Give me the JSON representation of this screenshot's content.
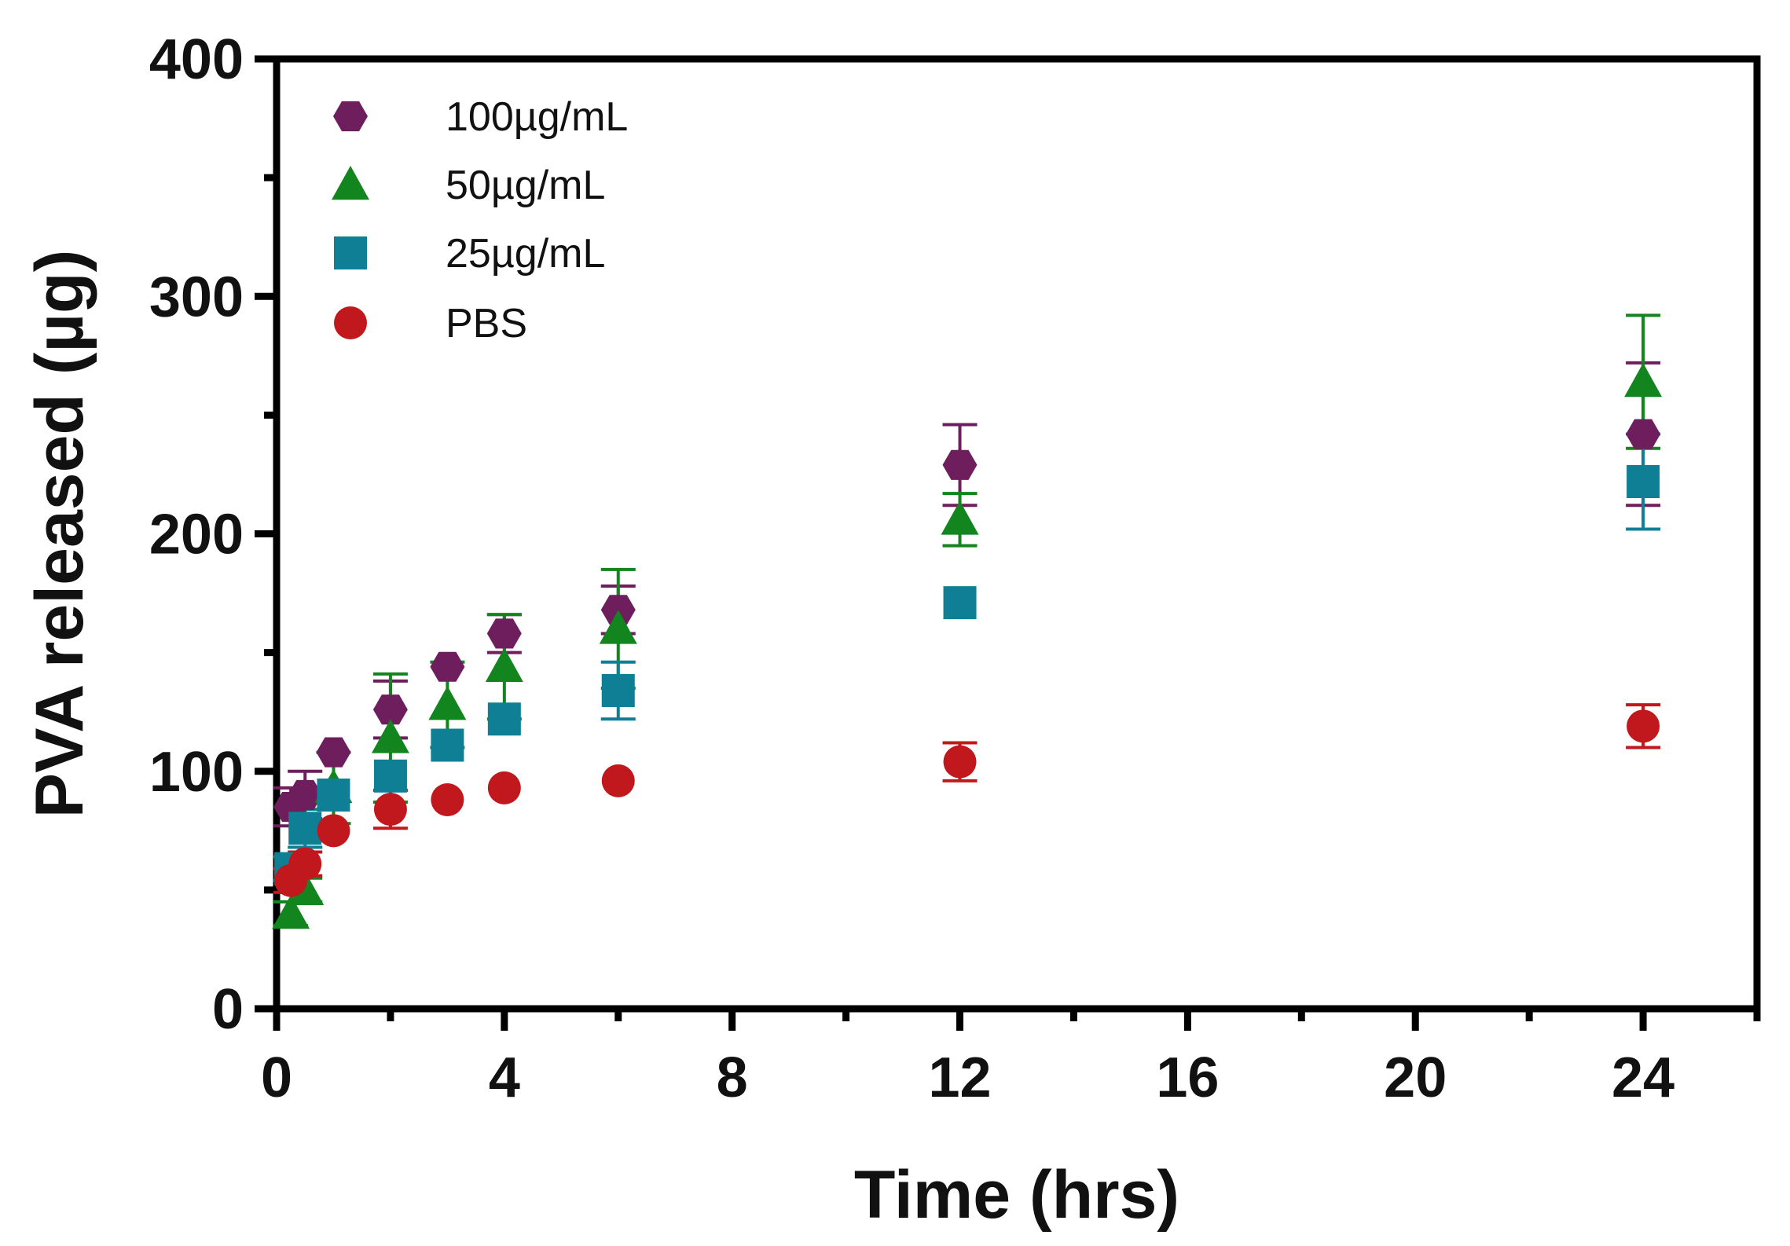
{
  "chart_data": {
    "type": "scatter",
    "title": "",
    "xlabel": "Time (hrs)",
    "ylabel": "PVA released (µg)",
    "xlim": [
      0,
      26
    ],
    "ylim": [
      0,
      400
    ],
    "xticks": [
      0,
      4,
      8,
      12,
      16,
      20,
      24
    ],
    "xticks_minor": [
      2,
      6,
      10,
      14,
      18,
      22,
      26
    ],
    "yticks": [
      0,
      100,
      200,
      300,
      400
    ],
    "yticks_minor": [
      50,
      150,
      250,
      350
    ],
    "grid": false,
    "legend_position": "top-left",
    "series": [
      {
        "name": "100µg/mL",
        "marker": "hexagon",
        "color": "#6e1e5c",
        "points": [
          {
            "x": 0.25,
            "y": 85,
            "err": 8
          },
          {
            "x": 0.5,
            "y": 90,
            "err": 10
          },
          {
            "x": 1,
            "y": 108,
            "err": 0
          },
          {
            "x": 2,
            "y": 126,
            "err": 12
          },
          {
            "x": 3,
            "y": 144,
            "err": 0
          },
          {
            "x": 4,
            "y": 158,
            "err": 8
          },
          {
            "x": 6,
            "y": 168,
            "err": 10
          },
          {
            "x": 12,
            "y": 229,
            "err": 17
          },
          {
            "x": 24,
            "y": 242,
            "err": 30
          }
        ]
      },
      {
        "name": "50µg/mL",
        "marker": "triangle",
        "color": "#12851e",
        "points": [
          {
            "x": 0.25,
            "y": 40,
            "err": 5
          },
          {
            "x": 0.5,
            "y": 50,
            "err": 5
          },
          {
            "x": 1,
            "y": 93,
            "err": 15
          },
          {
            "x": 2,
            "y": 114,
            "err": 27
          },
          {
            "x": 3,
            "y": 128,
            "err": 18
          },
          {
            "x": 4,
            "y": 144,
            "err": 22
          },
          {
            "x": 6,
            "y": 160,
            "err": 25
          },
          {
            "x": 12,
            "y": 206,
            "err": 11
          },
          {
            "x": 24,
            "y": 264,
            "err": 28
          }
        ]
      },
      {
        "name": "25µg/mL",
        "marker": "square",
        "color": "#0f7f96",
        "points": [
          {
            "x": 0.25,
            "y": 59,
            "err": 5
          },
          {
            "x": 0.5,
            "y": 76,
            "err": 8
          },
          {
            "x": 1,
            "y": 90,
            "err": 0
          },
          {
            "x": 2,
            "y": 98,
            "err": 0
          },
          {
            "x": 3,
            "y": 111,
            "err": 0
          },
          {
            "x": 4,
            "y": 122,
            "err": 0
          },
          {
            "x": 6,
            "y": 134,
            "err": 12
          },
          {
            "x": 12,
            "y": 171,
            "err": 0
          },
          {
            "x": 24,
            "y": 222,
            "err": 20
          }
        ]
      },
      {
        "name": "PBS",
        "marker": "circle",
        "color": "#c0181d",
        "points": [
          {
            "x": 0.25,
            "y": 54,
            "err": 5
          },
          {
            "x": 0.5,
            "y": 61,
            "err": 5
          },
          {
            "x": 1,
            "y": 75,
            "err": 0
          },
          {
            "x": 2,
            "y": 84,
            "err": 8
          },
          {
            "x": 3,
            "y": 88,
            "err": 0
          },
          {
            "x": 4,
            "y": 93,
            "err": 0
          },
          {
            "x": 6,
            "y": 96,
            "err": 0
          },
          {
            "x": 12,
            "y": 104,
            "err": 8
          },
          {
            "x": 24,
            "y": 119,
            "err": 9
          }
        ]
      }
    ]
  }
}
